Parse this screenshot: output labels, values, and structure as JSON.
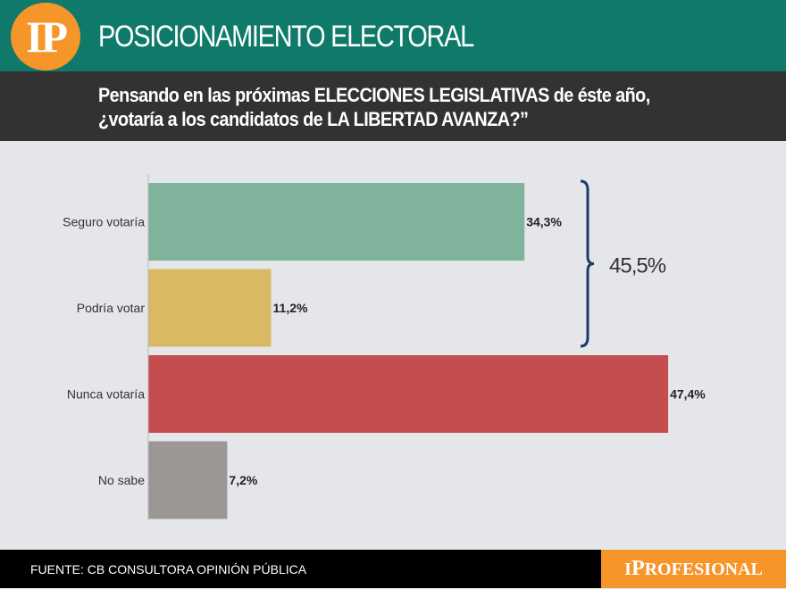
{
  "header": {
    "logo": "IP",
    "title": "POSICIONAMIENTO ELECTORAL"
  },
  "question": {
    "line1": "Pensando en las próximas ELECCIONES LEGISLATIVAS de éste año,",
    "line2": "¿votaría a los candidatos de LA LIBERTAD AVANZA?”"
  },
  "chart_data": {
    "type": "bar",
    "orientation": "horizontal",
    "categories": [
      "Seguro votaría",
      "Podría votar",
      "Nunca votaría",
      "No sabe"
    ],
    "values": [
      34.3,
      11.2,
      47.4,
      7.2
    ],
    "value_labels": [
      "34,3%",
      "11,2%",
      "47,4%",
      "7,2%"
    ],
    "colors": [
      "#80b39b",
      "#d9b964",
      "#c44d4f",
      "#9a9795"
    ],
    "xlim": [
      0,
      50
    ],
    "grid": false,
    "annotation": {
      "text": "45,5%",
      "groups": [
        "Seguro votaría",
        "Podría votar"
      ],
      "color": "#1f3d66"
    }
  },
  "footer": {
    "source": "FUENTE:  CB CONSULTORA OPINIÓN PÚBLICA",
    "brand": "IPROFESIONAL"
  }
}
